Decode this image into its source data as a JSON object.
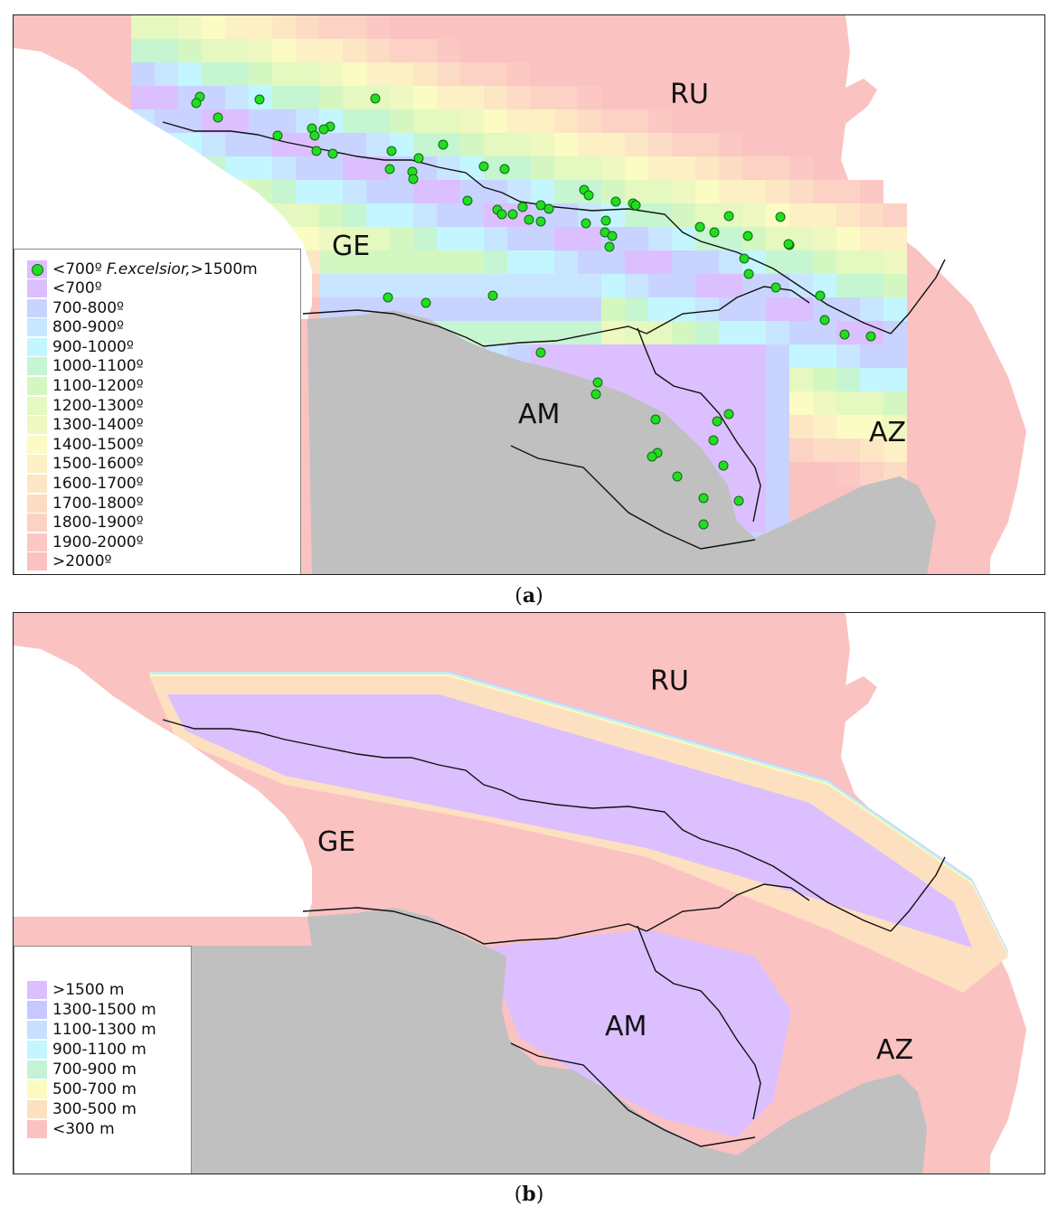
{
  "panel_a": {
    "caption_label": "a",
    "countries": {
      "RU": "RU",
      "GE": "GE",
      "AM": "AM",
      "AZ": "AZ"
    },
    "legend": {
      "point_item": {
        "prefix": "<700º",
        "species": "F.excelsior,",
        "suffix": ">1500m",
        "dot_color": "#22dd22"
      },
      "classes": [
        {
          "label": "<700º",
          "color": "#dcbfff"
        },
        {
          "label": "700-800º",
          "color": "#c8d4ff"
        },
        {
          "label": "800-900º",
          "color": "#c8e6ff"
        },
        {
          "label": "900-1000º",
          "color": "#c4f6ff"
        },
        {
          "label": "1000-1100º",
          "color": "#c6f5d2"
        },
        {
          "label": "1100-1200º",
          "color": "#d4f7c2"
        },
        {
          "label": "1200-1300º",
          "color": "#e4f8c0"
        },
        {
          "label": "1300-1400º",
          "color": "#eef8c0"
        },
        {
          "label": "1400-1500º",
          "color": "#fbfbc4"
        },
        {
          "label": "1500-1600º",
          "color": "#fdf0c4"
        },
        {
          "label": "1600-1700º",
          "color": "#fde6c4"
        },
        {
          "label": "1700-1800º",
          "color": "#fcdcc4"
        },
        {
          "label": "1800-1900º",
          "color": "#fcd2c4"
        },
        {
          "label": "1900-2000º",
          "color": "#fbc8c4"
        },
        {
          "label": ">2000º",
          "color": "#fbc2c2"
        }
      ]
    }
  },
  "panel_b": {
    "caption_label": "b",
    "countries": {
      "RU": "RU",
      "GE": "GE",
      "AM": "AM",
      "AZ": "AZ"
    },
    "legend": {
      "classes": [
        {
          "label": ">1500 m",
          "color": "#dcbfff"
        },
        {
          "label": "1300-1500 m",
          "color": "#c8c8ff"
        },
        {
          "label": "1100-1300 m",
          "color": "#c8e0ff"
        },
        {
          "label": "900-1100 m",
          "color": "#c4f6ff"
        },
        {
          "label": "700-900 m",
          "color": "#c4f2d4"
        },
        {
          "label": "500-700 m",
          "color": "#fbfbc0"
        },
        {
          "label": "300-500 m",
          "color": "#fde0c0"
        },
        {
          "label": "<300 m",
          "color": "#fbc2c2"
        }
      ]
    }
  },
  "colors": {
    "sea": "#ffffff",
    "outside": "#c0c0c0",
    "lowland": "#fbc2c2",
    "border": "#111111"
  }
}
